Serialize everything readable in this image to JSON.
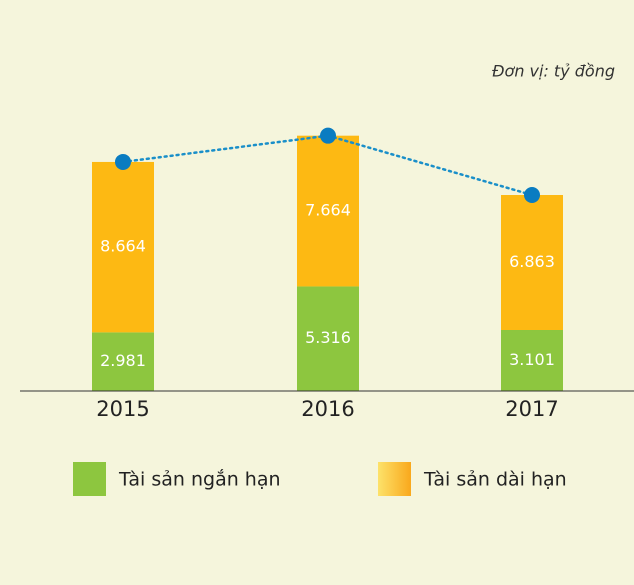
{
  "chart_data": {
    "type": "bar",
    "stacked": true,
    "subtitle": "Đơn vị: tỷ đồng",
    "categories": [
      "2015",
      "2016",
      "2017"
    ],
    "series": [
      {
        "name": "Tài sản ngắn hạn",
        "color": "#8dc63f",
        "values": [
          2981,
          5316,
          3101
        ],
        "value_labels": [
          "2.981",
          "5.316",
          "3.101"
        ]
      },
      {
        "name": "Tài sản dài hạn",
        "color": "#fdb913",
        "values": [
          8664,
          7664,
          6863
        ],
        "value_labels": [
          "8.664",
          "7.664",
          "6.863"
        ]
      }
    ],
    "total_line_color": "#1a8fc9"
  }
}
